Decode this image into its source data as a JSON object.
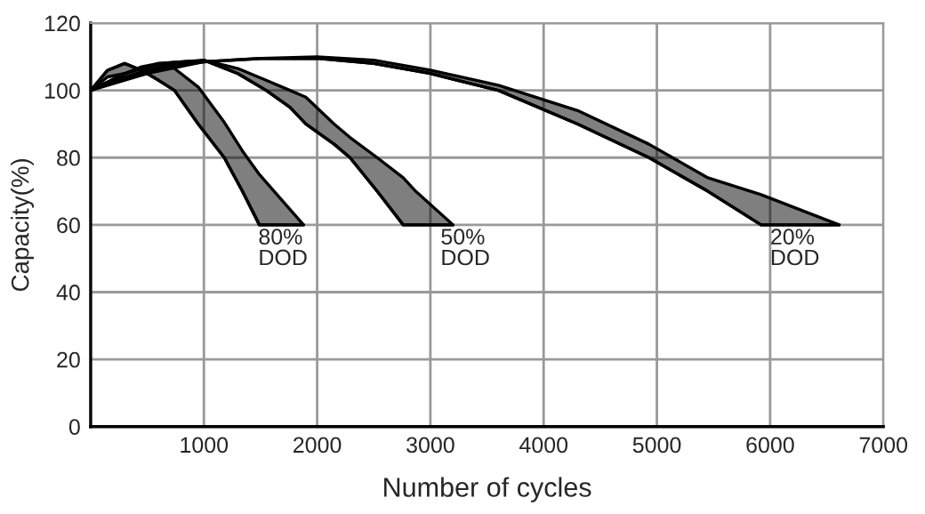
{
  "chart_data": {
    "type": "line",
    "xlabel": "Number of cycles",
    "ylabel": "Capacity(%)",
    "xlim": [
      0,
      7000
    ],
    "ylim": [
      0,
      120
    ],
    "xticks": [
      {
        "value": 0,
        "label": null
      },
      1000,
      2000,
      3000,
      4000,
      5000,
      6000,
      7000
    ],
    "yticks": [
      0,
      20,
      40,
      60,
      80,
      100,
      120
    ],
    "grid": true,
    "marker": "none",
    "line_style": "solid",
    "series": [
      {
        "color": "#000000",
        "x": [
          0,
          150,
          300,
          450,
          600,
          740,
          950,
          1180,
          1340,
          1490,
          1620,
          1880
        ],
        "values": [
          100,
          106,
          108,
          106,
          103,
          100,
          90,
          80,
          70,
          60,
          60,
          60
        ],
        "upper": [
          100,
          104,
          105,
          107,
          108,
          106.5,
          101,
          90.5,
          82,
          75,
          70,
          60
        ],
        "lower": [
          100,
          106,
          108,
          106,
          103,
          100,
          90,
          80,
          70,
          60,
          60,
          60
        ]
      },
      {
        "color": "#000000",
        "x": [
          0,
          300,
          600,
          1000,
          1300,
          1550,
          1760,
          1900,
          2150,
          2290,
          2530,
          2760,
          2870,
          3200
        ],
        "values": [
          100,
          105,
          108,
          109,
          105,
          100,
          95,
          90,
          84,
          80,
          70,
          60,
          60,
          60
        ],
        "upper": [
          100,
          104,
          107,
          109,
          106.5,
          103,
          100,
          98,
          90,
          86,
          80,
          74,
          70,
          60
        ],
        "lower": [
          100,
          105,
          108,
          109,
          105,
          100,
          95,
          90,
          84,
          80,
          70,
          60,
          60,
          60
        ]
      },
      {
        "color": "#000000",
        "x": [
          0,
          500,
          1000,
          1500,
          2000,
          2500,
          3000,
          3600,
          4300,
          4930,
          5450,
          5920,
          6610
        ],
        "values": [
          100,
          106,
          108.5,
          109.5,
          109.5,
          108,
          105,
          100,
          90,
          80,
          70,
          60,
          60
        ],
        "upper": [
          100,
          105,
          108.5,
          109.5,
          110,
          109,
          106,
          101.5,
          94,
          84,
          74,
          69,
          60
        ],
        "lower": [
          100,
          106,
          108.5,
          109.5,
          109.5,
          108,
          105,
          100,
          90,
          80,
          70,
          60,
          60
        ]
      }
    ],
    "annotations": [
      {
        "text": "80%\nDOD",
        "x": 1480,
        "y": 59
      },
      {
        "text": "50%\nDOD",
        "x": 3090,
        "y": 59
      },
      {
        "text": "20%\nDOD",
        "x": 6000,
        "y": 59
      }
    ]
  }
}
